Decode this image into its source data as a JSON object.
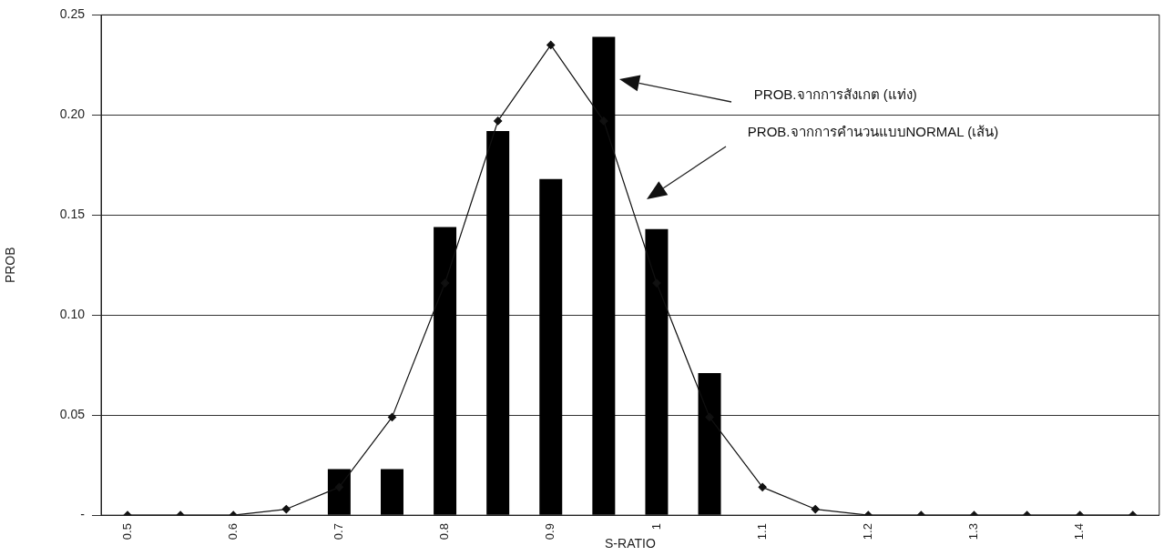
{
  "chart_data": {
    "type": "bar",
    "xlabel": "S-RATIO",
    "ylabel": "PROB",
    "categories": [
      "0.5",
      null,
      "0.6",
      null,
      "0.7",
      null,
      "0.8",
      null,
      "0.9",
      null,
      "1",
      null,
      "1.1",
      null,
      "1.2",
      null,
      "1.3",
      null,
      "1.4",
      null
    ],
    "series": [
      {
        "color": "#000000",
        "values": [
          0,
          0,
          0,
          0,
          0.023,
          0.023,
          0.144,
          0.192,
          0.168,
          0.239,
          0.143,
          0.071,
          0,
          0,
          0,
          0,
          0,
          0,
          0,
          0
        ]
      },
      {
        "type": "line",
        "color": "#111111",
        "marker": "diamond",
        "line_style": "solid",
        "values": [
          0,
          0,
          0,
          0.003,
          0.014,
          0.049,
          0.116,
          0.197,
          0.235,
          0.197,
          0.116,
          0.049,
          0.014,
          0.003,
          0,
          0,
          0,
          0,
          0,
          0
        ]
      }
    ],
    "ylim": [
      0,
      0.25
    ],
    "yticks": [
      {
        "value": 0,
        "label": "-"
      },
      {
        "value": 0.05,
        "label": "0.05"
      },
      {
        "value": 0.1,
        "label": "0.10"
      },
      {
        "value": 0.15,
        "label": "0.15"
      },
      {
        "value": 0.2,
        "label": "0.20"
      },
      {
        "value": 0.25,
        "label": "0.25"
      }
    ],
    "grid": "y",
    "legend": false,
    "annotations": [
      "PROB.จากการสังเกต (แท่ง)",
      "PROB.จากการคำนวนแบบNORMAL (เส้น)"
    ]
  }
}
